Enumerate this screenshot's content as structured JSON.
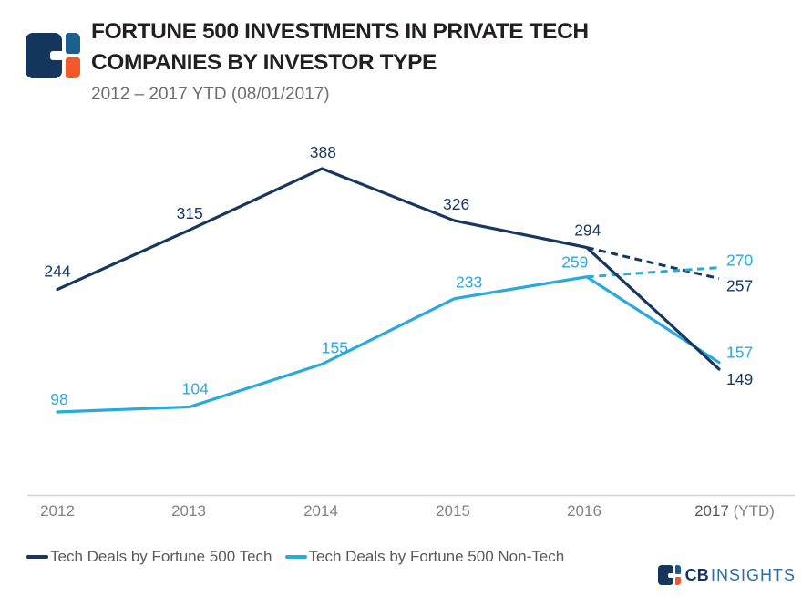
{
  "header": {
    "title_line1": "FORTUNE 500 INVESTMENTS IN PRIVATE TECH",
    "title_line2": "COMPANIES BY INVESTOR TYPE",
    "subtitle": "2012 – 2017 YTD (08/01/2017)"
  },
  "chart_data": {
    "type": "line",
    "title": "Fortune 500 Investments in Private Tech Companies by Investor Type",
    "categories": [
      "2012",
      "2013",
      "2014",
      "2015",
      "2016",
      "2017"
    ],
    "last_category_suffix": " (YTD)",
    "series": [
      {
        "name": "Tech Deals by Fortune 500 Tech",
        "color": "#17375E",
        "values": [
          244,
          315,
          388,
          326,
          294,
          149
        ],
        "projected_2017_full_year": 257,
        "projection_style": "dashed"
      },
      {
        "name": "Tech Deals by Fortune 500 Non-Tech",
        "color": "#29A9DC",
        "values": [
          98,
          104,
          155,
          233,
          259,
          157
        ],
        "projected_2017_full_year": 270,
        "projection_style": "dashed"
      }
    ],
    "ylim": [
      0,
      450
    ],
    "grid": false,
    "y_axis_visible": false,
    "legend_position": "bottom-left"
  },
  "footer": {
    "brand_bold": "CB",
    "brand_light": "INSIGHTS"
  },
  "colors": {
    "navy": "#17375E",
    "light_blue": "#29A9DC",
    "logo_navy": "#14365C",
    "logo_steel_blue": "#1C5F8C",
    "logo_orange": "#F1592A",
    "title_text": "#231F20",
    "subtitle_text": "#6D6E71",
    "axis_line": "#D1D3D4",
    "tick_text": "#808285",
    "tick_text_dark": "#58595B",
    "legend_text": "#58595B",
    "brand_insights_text": "#2E6E9E"
  }
}
